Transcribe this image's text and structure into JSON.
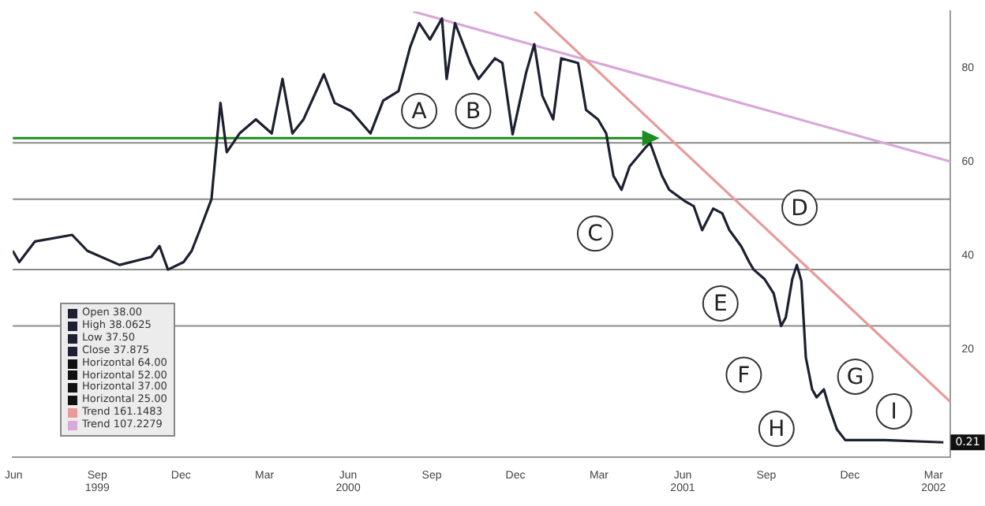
{
  "chart_data": {
    "type": "line",
    "xlim": [
      "1999-05-31",
      "2002-03-20"
    ],
    "xticks": [
      {
        "value": "1999-06-01",
        "label": "Jun"
      },
      {
        "value": "1999-09-01",
        "label": "Sep 1999"
      },
      {
        "value": "1999-12-01",
        "label": "Dec"
      },
      {
        "value": "2000-03-01",
        "label": "Mar"
      },
      {
        "value": "2000-06-01",
        "label": "Jun 2000"
      },
      {
        "value": "2000-09-01",
        "label": "Sep"
      },
      {
        "value": "2000-12-01",
        "label": "Dec"
      },
      {
        "value": "2001-03-01",
        "label": "Mar"
      },
      {
        "value": "2001-06-01",
        "label": "Jun 2001"
      },
      {
        "value": "2001-09-01",
        "label": "Sep"
      },
      {
        "value": "2001-12-01",
        "label": "Dec"
      },
      {
        "value": "2002-03-01",
        "label": "Mar 2002"
      }
    ],
    "ylim": [
      -3,
      92
    ],
    "yticks": [
      20,
      40,
      60,
      80
    ],
    "grid": false,
    "legend": false,
    "series": [
      {
        "color": "#1c2030",
        "x": [
          "1999-05-31",
          "1999-06-07",
          "1999-06-24",
          "1999-08-04",
          "1999-08-21",
          "1999-09-25",
          "1999-10-30",
          "1999-11-08",
          "1999-11-17",
          "1999-12-04",
          "1999-12-13",
          "1999-12-22",
          "2000-01-04",
          "2000-01-09",
          "2000-01-14",
          "2000-01-21",
          "2000-02-04",
          "2000-02-21",
          "2000-03-09",
          "2000-03-21",
          "2000-04-01",
          "2000-04-13",
          "2000-05-05",
          "2000-05-17",
          "2000-06-04",
          "2000-06-25",
          "2000-07-09",
          "2000-07-26",
          "2000-08-08",
          "2000-08-18",
          "2000-08-30",
          "2000-09-12",
          "2000-09-17",
          "2000-09-26",
          "2000-10-13",
          "2000-10-22",
          "2000-11-09",
          "2000-11-17",
          "2000-11-28",
          "2000-12-13",
          "2000-12-22",
          "2000-12-31",
          "2001-01-12",
          "2001-01-21",
          "2001-02-08",
          "2001-02-16",
          "2001-02-28",
          "2001-03-09",
          "2001-03-17",
          "2001-03-26",
          "2001-04-04",
          "2001-04-21",
          "2001-04-26",
          "2001-05-09",
          "2001-05-17",
          "2001-06-04",
          "2001-06-13",
          "2001-06-22",
          "2001-07-04",
          "2001-07-14",
          "2001-07-22",
          "2001-08-04",
          "2001-08-13",
          "2001-08-18",
          "2001-08-30",
          "2001-09-09",
          "2001-09-17",
          "2001-09-22",
          "2001-09-29",
          "2001-10-04",
          "2001-10-09",
          "2001-10-14",
          "2001-10-21",
          "2001-10-26",
          "2001-11-03",
          "2001-11-08",
          "2001-11-17",
          "2001-11-26",
          "2001-12-13",
          "2002-01-09",
          "2002-03-12"
        ],
        "values": [
          41,
          38.6,
          43,
          44.4,
          41,
          38,
          39.7,
          42,
          37,
          38.6,
          41,
          45.4,
          52,
          62.4,
          72.5,
          62,
          66,
          69,
          66,
          77.6,
          66,
          69,
          78.6,
          72.5,
          70.8,
          66,
          73,
          75,
          84.4,
          89.5,
          86,
          90.5,
          77.6,
          89.5,
          81,
          77.6,
          82,
          81,
          65.8,
          79,
          85,
          74,
          69,
          82,
          81,
          71,
          69,
          66,
          57,
          54,
          59,
          63,
          64,
          57,
          54,
          51.5,
          50.5,
          45.4,
          50,
          49,
          45.4,
          42,
          38.6,
          37,
          35,
          31.9,
          25,
          26.8,
          35,
          38,
          34.6,
          18.3,
          11.5,
          9.8,
          11.5,
          8.1,
          3,
          0.7,
          0.7,
          0.7,
          0.21
        ]
      },
      {
        "color": "#1e8c1e",
        "x": [
          "1999-05-31",
          "2001-04-26"
        ],
        "values": [
          65,
          65
        ]
      },
      {
        "color": "#e89a9a",
        "x": [
          "2000-12-22",
          "2002-03-20"
        ],
        "values": [
          92,
          8.8
        ]
      },
      {
        "color": "#d8a8d8",
        "x": [
          "2000-08-11",
          "2002-03-20"
        ],
        "values": [
          92,
          60
        ]
      }
    ],
    "ref_lines": [
      {
        "axis": "y",
        "value": 64,
        "color": "#8a8a8a"
      },
      {
        "axis": "y",
        "value": 52,
        "color": "#8a8a8a"
      },
      {
        "axis": "y",
        "value": 37,
        "color": "#8a8a8a"
      },
      {
        "axis": "y",
        "value": 25,
        "color": "#8a8a8a"
      }
    ],
    "annotations": [
      {
        "text": "A",
        "x": "2000-08-18",
        "y": 70.8
      },
      {
        "text": "B",
        "x": "2000-10-16",
        "y": 70.8
      },
      {
        "text": "C",
        "x": "2001-02-25",
        "y": 44.7
      },
      {
        "text": "D",
        "x": "2001-10-07",
        "y": 50.2
      },
      {
        "text": "E",
        "x": "2001-07-12",
        "y": 29.8
      },
      {
        "text": "F",
        "x": "2001-08-07",
        "y": 14.6
      },
      {
        "text": "G",
        "x": "2001-12-07",
        "y": 14.2
      },
      {
        "text": "H",
        "x": "2001-09-12",
        "y": 3.1
      },
      {
        "text": "I",
        "x": "2002-01-19",
        "y": 6.8
      },
      {
        "text": "0.21",
        "x": "2002-03-20",
        "y": 0.21
      },
      "Open 38.00",
      "High 38.0625",
      "Low 37.50",
      "Close 37.875",
      "Horizontal 64.00",
      "Horizontal 52.00",
      "Horizontal 37.00",
      "Horizontal 25.00",
      "Trend 161.1483",
      "Trend 107.2279"
    ]
  }
}
